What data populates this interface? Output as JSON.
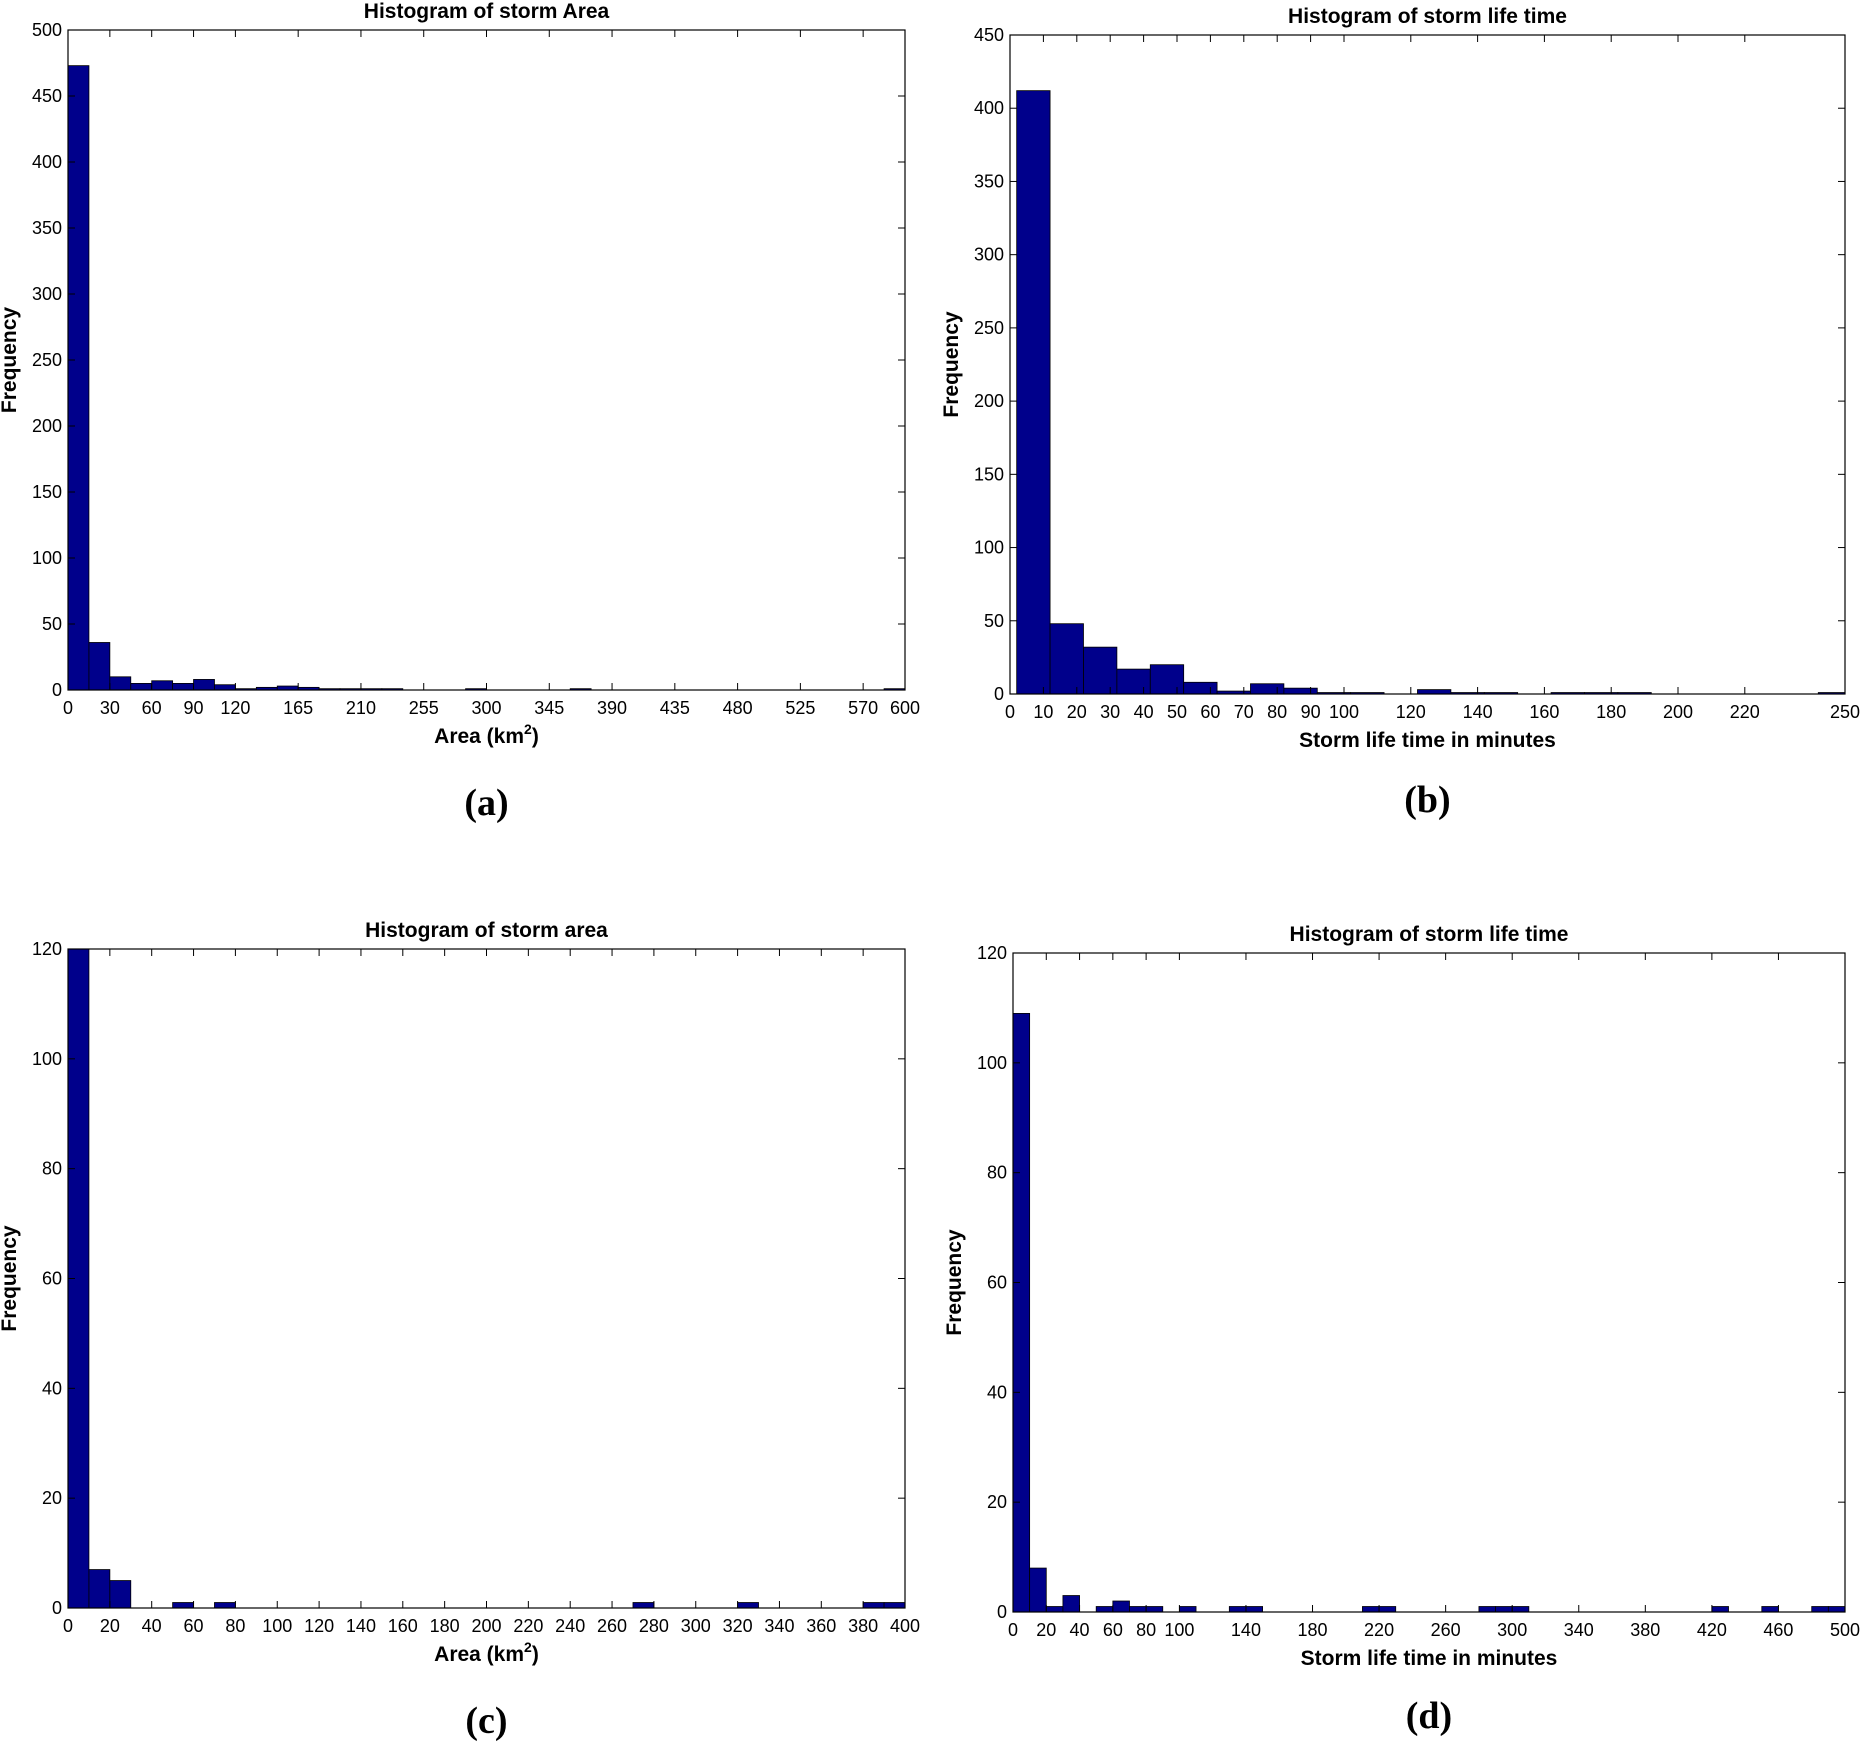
{
  "colors": {
    "bar_fill": "#00008B",
    "axis": "#000000",
    "background": "#ffffff"
  },
  "chart_data": [
    {
      "id": "a",
      "type": "bar",
      "panel_label": "(a)",
      "title": "Histogram of storm Area",
      "xlabel_main": "Area (km",
      "xlabel_sup": "2",
      "xlabel_tail": ")",
      "ylabel": "Frequency",
      "xlim": [
        0,
        600
      ],
      "ylim": [
        0,
        500
      ],
      "x_ticks": [
        0,
        30,
        60,
        90,
        120,
        165,
        210,
        255,
        300,
        345,
        390,
        435,
        480,
        525,
        570,
        600
      ],
      "y_ticks": [
        0,
        50,
        100,
        150,
        200,
        250,
        300,
        350,
        400,
        450,
        500
      ],
      "bins": [
        {
          "x0": 0,
          "x1": 15,
          "value": 473
        },
        {
          "x0": 15,
          "x1": 30,
          "value": 36
        },
        {
          "x0": 30,
          "x1": 45,
          "value": 10
        },
        {
          "x0": 45,
          "x1": 60,
          "value": 5
        },
        {
          "x0": 60,
          "x1": 75,
          "value": 7
        },
        {
          "x0": 75,
          "x1": 90,
          "value": 5
        },
        {
          "x0": 90,
          "x1": 105,
          "value": 8
        },
        {
          "x0": 105,
          "x1": 120,
          "value": 4
        },
        {
          "x0": 120,
          "x1": 135,
          "value": 1
        },
        {
          "x0": 135,
          "x1": 150,
          "value": 2
        },
        {
          "x0": 150,
          "x1": 165,
          "value": 3
        },
        {
          "x0": 165,
          "x1": 180,
          "value": 2
        },
        {
          "x0": 180,
          "x1": 195,
          "value": 1
        },
        {
          "x0": 195,
          "x1": 210,
          "value": 1
        },
        {
          "x0": 210,
          "x1": 225,
          "value": 1
        },
        {
          "x0": 225,
          "x1": 240,
          "value": 1
        },
        {
          "x0": 285,
          "x1": 300,
          "value": 1
        },
        {
          "x0": 360,
          "x1": 375,
          "value": 1
        },
        {
          "x0": 585,
          "x1": 600,
          "value": 1
        }
      ]
    },
    {
      "id": "b",
      "type": "bar",
      "panel_label": "(b)",
      "title": "Histogram of storm life time",
      "xlabel_main": "Storm life time in minutes",
      "xlabel_sup": "",
      "xlabel_tail": "",
      "ylabel": "Frequency",
      "xlim": [
        0,
        250
      ],
      "ylim": [
        0,
        450
      ],
      "x_ticks": [
        0,
        10,
        20,
        30,
        40,
        50,
        60,
        70,
        80,
        90,
        100,
        120,
        140,
        160,
        180,
        200,
        220,
        250
      ],
      "y_ticks": [
        0,
        50,
        100,
        150,
        200,
        250,
        300,
        350,
        400,
        450
      ],
      "bins": [
        {
          "x0": 2,
          "x1": 12,
          "value": 412
        },
        {
          "x0": 12,
          "x1": 22,
          "value": 48
        },
        {
          "x0": 22,
          "x1": 32,
          "value": 32
        },
        {
          "x0": 32,
          "x1": 42,
          "value": 17
        },
        {
          "x0": 42,
          "x1": 52,
          "value": 20
        },
        {
          "x0": 52,
          "x1": 62,
          "value": 8
        },
        {
          "x0": 62,
          "x1": 72,
          "value": 2
        },
        {
          "x0": 72,
          "x1": 82,
          "value": 7
        },
        {
          "x0": 82,
          "x1": 92,
          "value": 4
        },
        {
          "x0": 92,
          "x1": 102,
          "value": 1
        },
        {
          "x0": 102,
          "x1": 112,
          "value": 1
        },
        {
          "x0": 122,
          "x1": 132,
          "value": 3
        },
        {
          "x0": 132,
          "x1": 142,
          "value": 1
        },
        {
          "x0": 142,
          "x1": 152,
          "value": 1
        },
        {
          "x0": 162,
          "x1": 172,
          "value": 1
        },
        {
          "x0": 172,
          "x1": 182,
          "value": 1
        },
        {
          "x0": 182,
          "x1": 192,
          "value": 1
        },
        {
          "x0": 242,
          "x1": 250,
          "value": 1
        }
      ]
    },
    {
      "id": "c",
      "type": "bar",
      "panel_label": "(c)",
      "title": "Histogram of storm area",
      "xlabel_main": "Area (km",
      "xlabel_sup": "2",
      "xlabel_tail": ")",
      "ylabel": "Frequency",
      "xlim": [
        0,
        400
      ],
      "ylim": [
        0,
        120
      ],
      "x_ticks": [
        0,
        20,
        40,
        60,
        80,
        100,
        120,
        140,
        160,
        180,
        200,
        220,
        240,
        260,
        280,
        300,
        320,
        340,
        360,
        380,
        400
      ],
      "y_ticks": [
        0,
        20,
        40,
        60,
        80,
        100,
        120
      ],
      "bins": [
        {
          "x0": 0,
          "x1": 10,
          "value": 120
        },
        {
          "x0": 10,
          "x1": 20,
          "value": 7
        },
        {
          "x0": 20,
          "x1": 30,
          "value": 5
        },
        {
          "x0": 50,
          "x1": 60,
          "value": 1
        },
        {
          "x0": 70,
          "x1": 80,
          "value": 1
        },
        {
          "x0": 270,
          "x1": 280,
          "value": 1
        },
        {
          "x0": 320,
          "x1": 330,
          "value": 1
        },
        {
          "x0": 380,
          "x1": 390,
          "value": 1
        },
        {
          "x0": 390,
          "x1": 400,
          "value": 1
        }
      ]
    },
    {
      "id": "d",
      "type": "bar",
      "panel_label": "(d)",
      "title": "Histogram of storm life time",
      "xlabel_main": "Storm life time in minutes",
      "xlabel_sup": "",
      "xlabel_tail": "",
      "ylabel": "Frequency",
      "xlim": [
        0,
        500
      ],
      "ylim": [
        0,
        120
      ],
      "x_ticks": [
        0,
        20,
        40,
        60,
        80,
        100,
        140,
        180,
        220,
        260,
        300,
        340,
        380,
        420,
        460,
        500
      ],
      "y_ticks": [
        0,
        20,
        40,
        60,
        80,
        100,
        120
      ],
      "bins": [
        {
          "x0": 0,
          "x1": 10,
          "value": 109
        },
        {
          "x0": 10,
          "x1": 20,
          "value": 8
        },
        {
          "x0": 20,
          "x1": 30,
          "value": 1
        },
        {
          "x0": 30,
          "x1": 40,
          "value": 3
        },
        {
          "x0": 50,
          "x1": 60,
          "value": 1
        },
        {
          "x0": 60,
          "x1": 70,
          "value": 2
        },
        {
          "x0": 70,
          "x1": 80,
          "value": 1
        },
        {
          "x0": 80,
          "x1": 90,
          "value": 1
        },
        {
          "x0": 100,
          "x1": 110,
          "value": 1
        },
        {
          "x0": 130,
          "x1": 140,
          "value": 1
        },
        {
          "x0": 140,
          "x1": 150,
          "value": 1
        },
        {
          "x0": 210,
          "x1": 220,
          "value": 1
        },
        {
          "x0": 220,
          "x1": 230,
          "value": 1
        },
        {
          "x0": 280,
          "x1": 290,
          "value": 1
        },
        {
          "x0": 290,
          "x1": 300,
          "value": 1
        },
        {
          "x0": 300,
          "x1": 310,
          "value": 1
        },
        {
          "x0": 420,
          "x1": 430,
          "value": 1
        },
        {
          "x0": 450,
          "x1": 460,
          "value": 1
        },
        {
          "x0": 480,
          "x1": 490,
          "value": 1
        },
        {
          "x0": 490,
          "x1": 500,
          "value": 1
        }
      ]
    }
  ]
}
